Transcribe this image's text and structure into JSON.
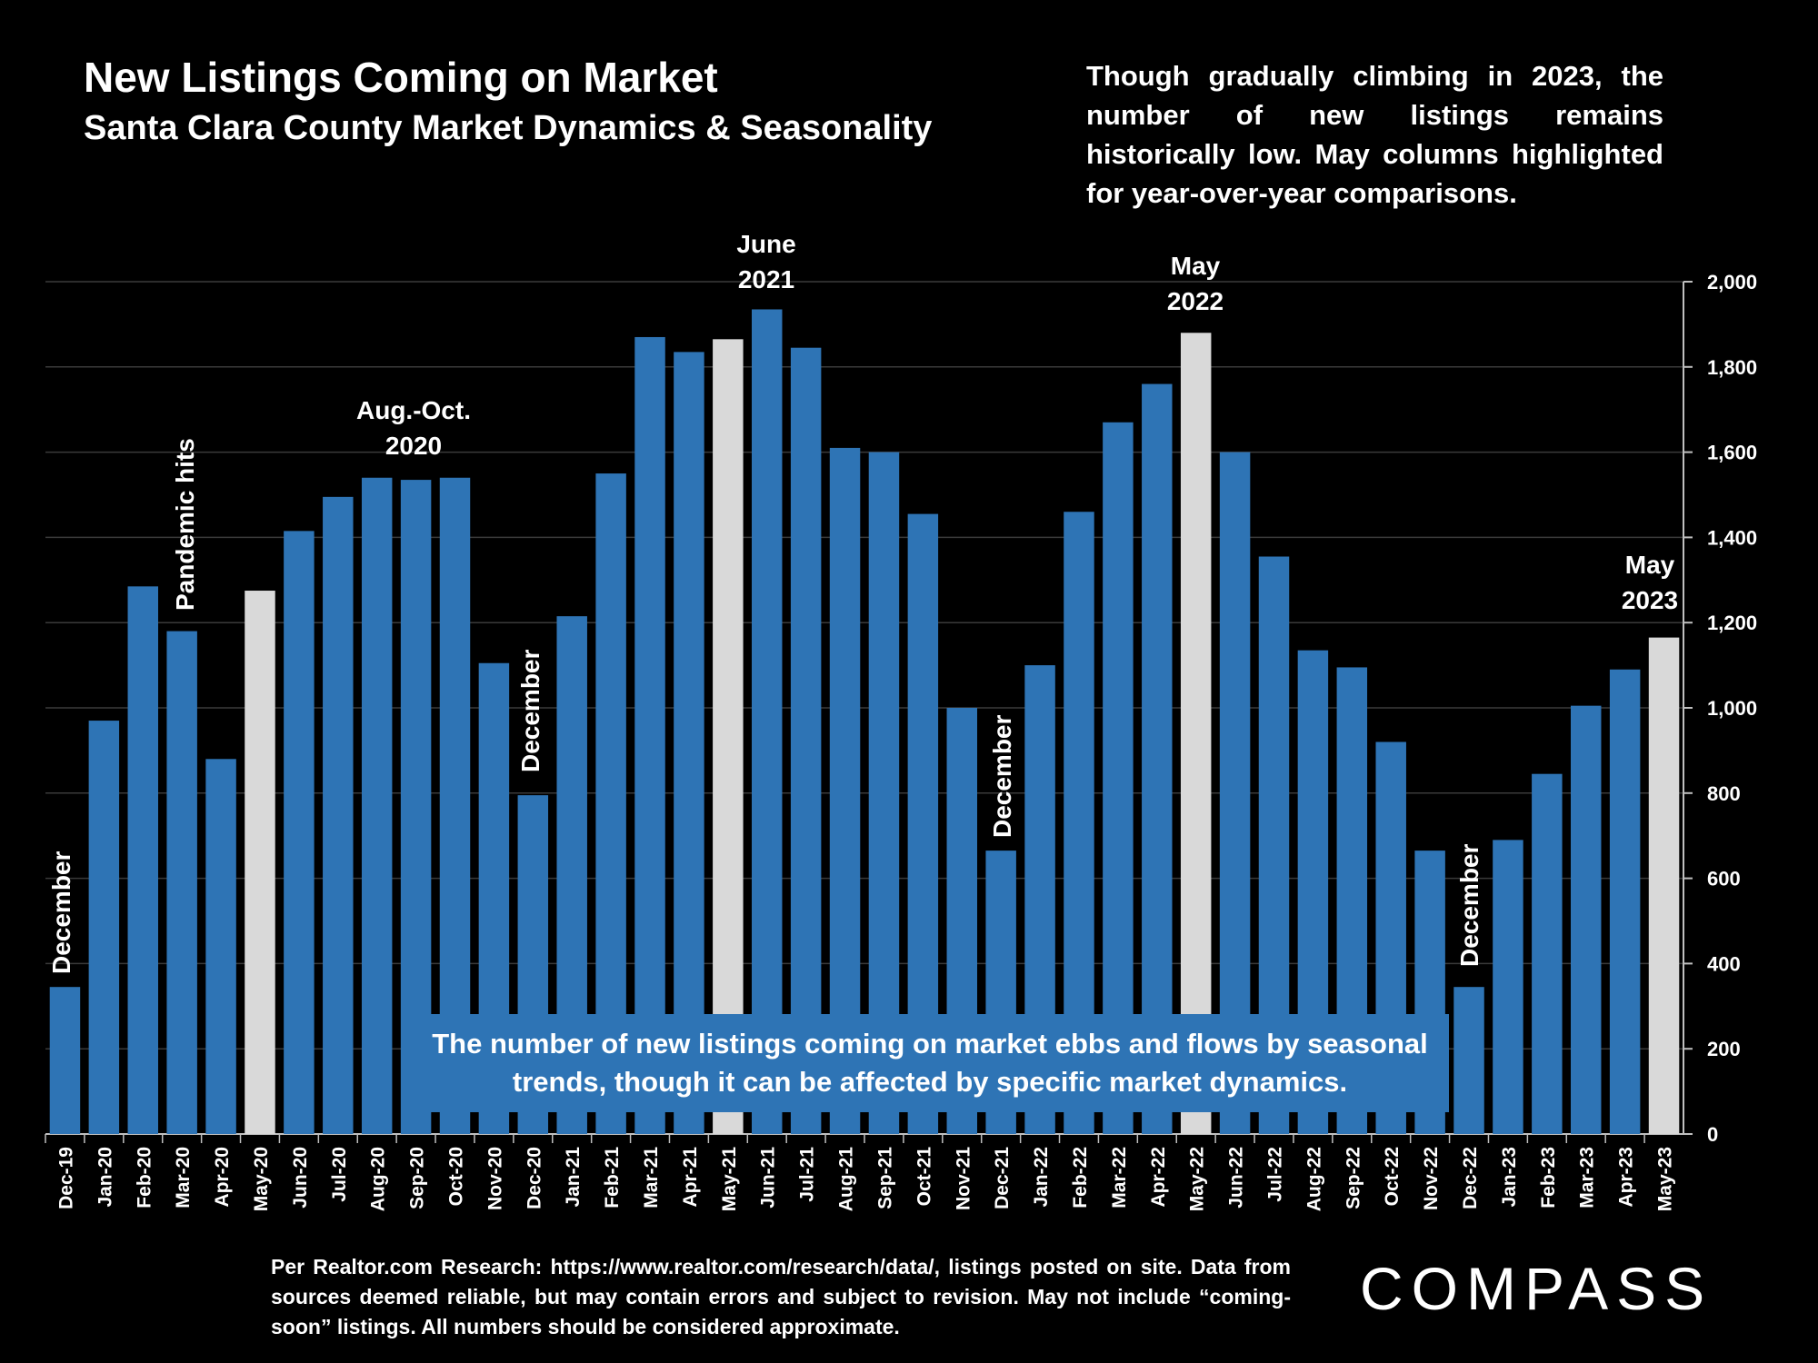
{
  "title": "New Listings Coming on Market",
  "subtitle": "Santa Clara County Market Dynamics & Seasonality",
  "note": "Though gradually climbing in 2023, the number of new listings remains historically low. May columns highlighted for year-over-year comparisons.",
  "callout": "The number of new listings coming on market ebbs and flows by seasonal trends, though it can be affected by specific market dynamics.",
  "footer": "Per Realtor.com Research: https://www.realtor.com/research/data/, listings posted on site. Data from sources deemed reliable, but may contain errors and subject to revision. May not include “coming-soon” listings. All numbers should be considered approximate.",
  "brand": "COMPASS",
  "annotations": {
    "december": "December",
    "pandemic": "Pandemic hits",
    "aug_oct_line1": "Aug.-Oct.",
    "aug_oct_line2": "2020",
    "june_line1": "June",
    "june_line2": "2021",
    "may22_line1": "May",
    "may22_line2": "2022",
    "may23_line1": "May",
    "may23_line2": "2023"
  },
  "colors": {
    "bar": "#2e74b5",
    "highlight": "#d9d9d9",
    "background": "#000000",
    "grid": "#3a3a3a",
    "axis": "#bfbfbf"
  },
  "chart_data": {
    "type": "bar",
    "categories": [
      "Dec-19",
      "Jan-20",
      "Feb-20",
      "Mar-20",
      "Apr-20",
      "May-20",
      "Jun-20",
      "Jul-20",
      "Aug-20",
      "Sep-20",
      "Oct-20",
      "Nov-20",
      "Dec-20",
      "Jan-21",
      "Feb-21",
      "Mar-21",
      "Apr-21",
      "May-21",
      "Jun-21",
      "Jul-21",
      "Aug-21",
      "Sep-21",
      "Oct-21",
      "Nov-21",
      "Dec-21",
      "Jan-22",
      "Feb-22",
      "Mar-22",
      "Apr-22",
      "May-22",
      "Jun-22",
      "Jul-22",
      "Aug-22",
      "Sep-22",
      "Oct-22",
      "Nov-22",
      "Dec-22",
      "Jan-23",
      "Feb-23",
      "Mar-23",
      "Apr-23",
      "May-23"
    ],
    "values": [
      345,
      970,
      1285,
      1180,
      880,
      1275,
      1415,
      1495,
      1540,
      1535,
      1540,
      1105,
      795,
      1215,
      1550,
      1870,
      1835,
      1865,
      1935,
      1845,
      1610,
      1600,
      1455,
      1000,
      665,
      1100,
      1460,
      1670,
      1760,
      1880,
      1600,
      1355,
      1135,
      1095,
      920,
      665,
      345,
      690,
      845,
      1005,
      1090,
      1165
    ],
    "highlighted": [
      "May-20",
      "May-21",
      "May-22",
      "May-23"
    ],
    "yticks": [
      "0",
      "200",
      "400",
      "600",
      "800",
      "1,000",
      "1,200",
      "1,400",
      "1,600",
      "1,800",
      "2,000"
    ],
    "ylim": [
      0,
      2000
    ],
    "y_axis_position": "right",
    "grid": true,
    "legend": "none",
    "title": "New Listings Coming on Market",
    "xlabel": "",
    "ylabel": ""
  }
}
